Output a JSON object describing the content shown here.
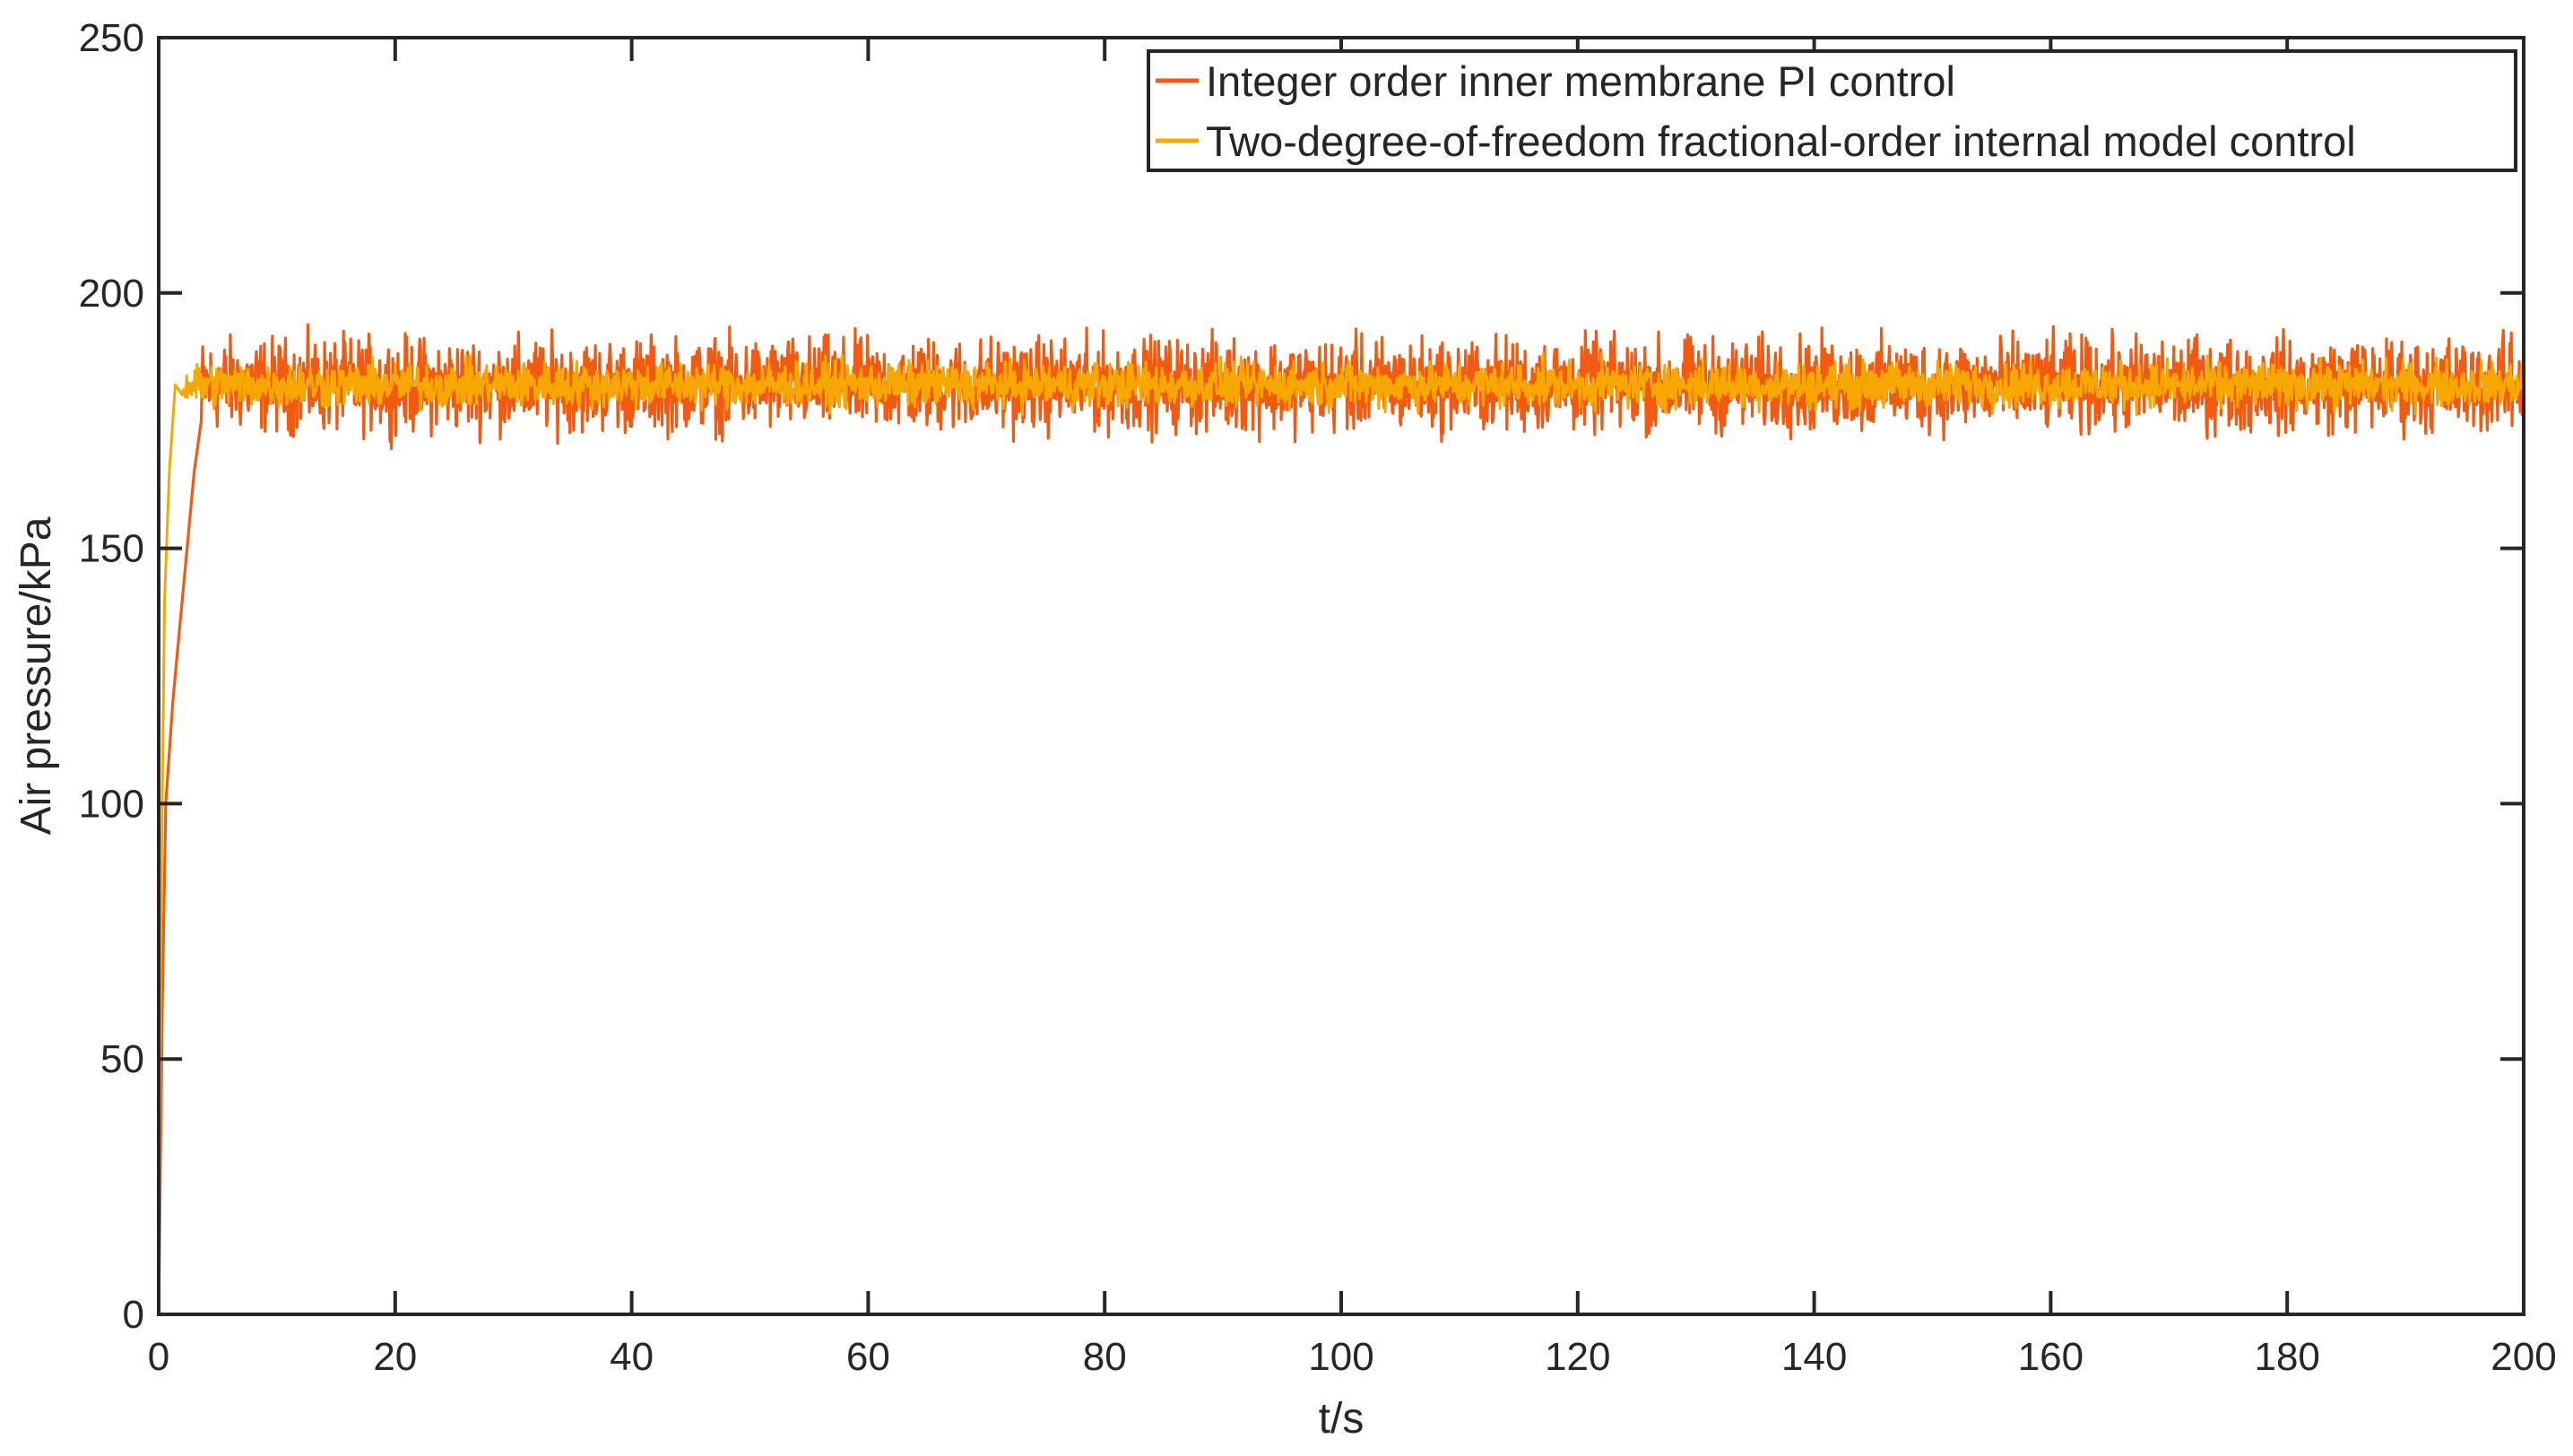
{
  "chart_data": {
    "type": "line",
    "title": "",
    "xlabel": "t/s",
    "ylabel": "Air pressure/kPa",
    "xlim": [
      0,
      200
    ],
    "ylim": [
      0,
      250
    ],
    "xticks": [
      0,
      20,
      40,
      60,
      80,
      100,
      120,
      140,
      160,
      180,
      200
    ],
    "yticks": [
      0,
      50,
      100,
      150,
      200,
      250
    ],
    "grid": false,
    "legend_position": "top-right",
    "series": [
      {
        "name": "Integer order inner membrane PI control",
        "color": "#F25A12",
        "rise": [
          [
            0,
            0
          ],
          [
            0.3,
            60
          ],
          [
            0.6,
            100
          ],
          [
            1.2,
            120
          ],
          [
            1.8,
            135
          ],
          [
            2.4,
            150
          ],
          [
            3.0,
            165
          ],
          [
            3.6,
            175
          ]
        ],
        "steady_mean": 182,
        "steady_band": [
          169,
          200
        ],
        "steady_from": 3.6
      },
      {
        "name": "Two-degree-of-freedom fractional-order internal model control",
        "color": "#F6A800",
        "rise": [
          [
            0,
            0
          ],
          [
            0.2,
            80
          ],
          [
            0.5,
            140
          ],
          [
            0.9,
            165
          ],
          [
            1.4,
            182
          ],
          [
            2.0,
            180
          ]
        ],
        "steady_mean": 182,
        "steady_band": [
          174,
          189
        ],
        "steady_from": 2.0
      }
    ]
  }
}
